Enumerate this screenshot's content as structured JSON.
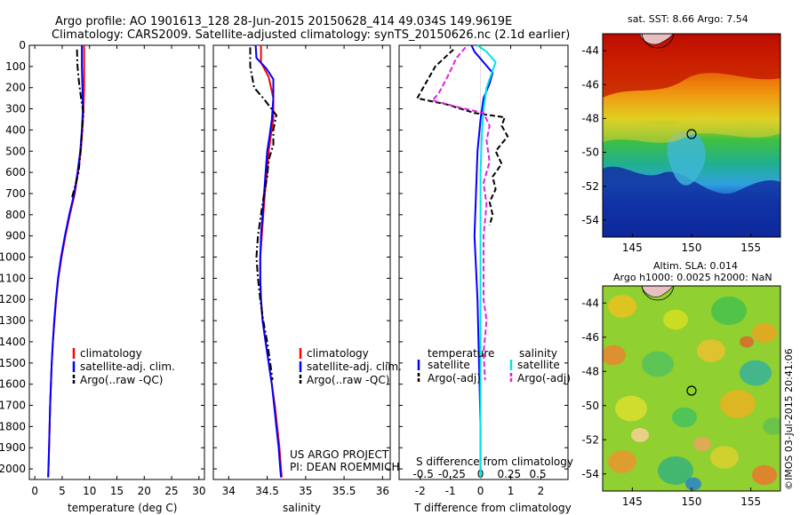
{
  "header": {
    "title_line1": "Argo profile: AO 1901613_128 28-Jun-2015 20150628_414 49.034S 149.9619E",
    "title_line2": "Climatology: CARS2009. Satellite-adjusted climatology: synTS_20150626.nc (2.1d earlier)"
  },
  "colors": {
    "climatology": "#ff0000",
    "satellite": "#0000ff",
    "argo": "#000000",
    "satellite_salinity": "#00e5e5",
    "argo_salinity_diff": "#e020e0"
  },
  "chart_data": [
    {
      "type": "line",
      "name": "temperature-profile",
      "xlabel": "temperature (deg C)",
      "xlim": [
        -1,
        31
      ],
      "ylim": [
        2050,
        0
      ],
      "x_ticks": [
        0,
        5,
        10,
        15,
        20,
        25,
        30
      ],
      "y_ticks": [
        0,
        100,
        200,
        300,
        400,
        500,
        600,
        700,
        800,
        900,
        1000,
        1100,
        1200,
        1300,
        1400,
        1500,
        1600,
        1700,
        1800,
        1900,
        2000
      ],
      "legend": [
        "climatology",
        "satellite-adj. clim.",
        "Argo(..raw -QC)"
      ],
      "series": [
        {
          "name": "climatology",
          "style": "solid",
          "color": "#ff0000",
          "points": [
            [
              9.0,
              0
            ],
            [
              9.0,
              100
            ],
            [
              9.0,
              200
            ],
            [
              8.9,
              300
            ],
            [
              8.7,
              400
            ],
            [
              8.4,
              500
            ],
            [
              7.9,
              600
            ],
            [
              7.3,
              700
            ],
            [
              6.4,
              800
            ],
            [
              5.6,
              900
            ],
            [
              4.9,
              1000
            ],
            [
              4.3,
              1100
            ],
            [
              3.9,
              1200
            ],
            [
              3.6,
              1300
            ],
            [
              3.3,
              1400
            ],
            [
              3.1,
              1500
            ],
            [
              2.95,
              1600
            ],
            [
              2.8,
              1700
            ],
            [
              2.7,
              1800
            ],
            [
              2.6,
              1900
            ],
            [
              2.5,
              2000
            ],
            [
              2.45,
              2040
            ]
          ]
        },
        {
          "name": "satellite-adj. clim.",
          "style": "solid",
          "color": "#0000ff",
          "points": [
            [
              8.6,
              0
            ],
            [
              8.6,
              100
            ],
            [
              8.7,
              200
            ],
            [
              8.8,
              300
            ],
            [
              8.6,
              400
            ],
            [
              8.3,
              500
            ],
            [
              7.8,
              600
            ],
            [
              7.2,
              700
            ],
            [
              6.3,
              800
            ],
            [
              5.5,
              900
            ],
            [
              4.8,
              1000
            ],
            [
              4.25,
              1100
            ],
            [
              3.85,
              1200
            ],
            [
              3.55,
              1300
            ],
            [
              3.3,
              1400
            ],
            [
              3.1,
              1500
            ],
            [
              2.95,
              1600
            ],
            [
              2.8,
              1700
            ],
            [
              2.7,
              1800
            ],
            [
              2.6,
              1900
            ],
            [
              2.5,
              2000
            ],
            [
              2.45,
              2040
            ]
          ]
        },
        {
          "name": "Argo(..raw -QC)",
          "style": "dashdot",
          "color": "#000000",
          "points": [
            [
              7.7,
              20
            ],
            [
              7.8,
              100
            ],
            [
              8.1,
              180
            ],
            [
              8.5,
              260
            ],
            [
              8.9,
              320
            ],
            [
              8.7,
              380
            ],
            [
              8.5,
              450
            ],
            [
              8.3,
              520
            ],
            [
              8.0,
              600
            ],
            [
              7.2,
              680
            ],
            [
              6.8,
              720
            ]
          ]
        }
      ]
    },
    {
      "type": "line",
      "name": "salinity-profile",
      "xlabel": "salinity",
      "xlim": [
        33.8,
        36.1
      ],
      "ylim": [
        2050,
        0
      ],
      "x_ticks": [
        34,
        34.5,
        35,
        35.5,
        36
      ],
      "legend": [
        "climatology",
        "satellite-adj. clim.",
        "Argo(..raw -QC)"
      ],
      "annotation": [
        "US ARGO PROJECT",
        "PI: DEAN ROEMMICH"
      ],
      "series": [
        {
          "name": "climatology",
          "style": "solid",
          "color": "#ff0000",
          "points": [
            [
              34.42,
              0
            ],
            [
              34.42,
              80
            ],
            [
              34.52,
              150
            ],
            [
              34.58,
              250
            ],
            [
              34.58,
              350
            ],
            [
              34.55,
              420
            ],
            [
              34.52,
              500
            ],
            [
              34.5,
              600
            ],
            [
              34.47,
              700
            ],
            [
              34.45,
              800
            ],
            [
              34.43,
              900
            ],
            [
              34.41,
              1000
            ],
            [
              34.41,
              1100
            ],
            [
              34.42,
              1200
            ],
            [
              34.44,
              1300
            ],
            [
              34.48,
              1400
            ],
            [
              34.52,
              1500
            ],
            [
              34.56,
              1600
            ],
            [
              34.6,
              1700
            ],
            [
              34.63,
              1800
            ],
            [
              34.66,
              1900
            ],
            [
              34.68,
              2000
            ],
            [
              34.69,
              2040
            ]
          ]
        },
        {
          "name": "satellite-adj. clim.",
          "style": "solid",
          "color": "#0000ff",
          "points": [
            [
              34.35,
              0
            ],
            [
              34.36,
              60
            ],
            [
              34.49,
              110
            ],
            [
              34.58,
              160
            ],
            [
              34.58,
              250
            ],
            [
              34.56,
              350
            ],
            [
              34.53,
              430
            ],
            [
              34.5,
              500
            ],
            [
              34.48,
              600
            ],
            [
              34.46,
              700
            ],
            [
              34.44,
              800
            ],
            [
              34.42,
              900
            ],
            [
              34.41,
              1000
            ],
            [
              34.41,
              1100
            ],
            [
              34.42,
              1200
            ],
            [
              34.44,
              1300
            ],
            [
              34.48,
              1400
            ],
            [
              34.52,
              1500
            ],
            [
              34.56,
              1600
            ],
            [
              34.59,
              1700
            ],
            [
              34.62,
              1800
            ],
            [
              34.65,
              1900
            ],
            [
              34.67,
              2000
            ],
            [
              34.68,
              2040
            ]
          ]
        },
        {
          "name": "Argo(..raw -QC)",
          "style": "dashdot",
          "color": "#000000",
          "points": [
            [
              34.28,
              10
            ],
            [
              34.28,
              100
            ],
            [
              34.33,
              200
            ],
            [
              34.45,
              250
            ],
            [
              34.62,
              330
            ],
            [
              34.58,
              400
            ],
            [
              34.58,
              470
            ],
            [
              34.52,
              540
            ],
            [
              34.5,
              620
            ],
            [
              34.46,
              700
            ],
            [
              34.42,
              800
            ],
            [
              34.38,
              900
            ],
            [
              34.36,
              1000
            ],
            [
              34.38,
              1100
            ],
            [
              34.41,
              1200
            ],
            [
              34.45,
              1300
            ],
            [
              34.5,
              1400
            ],
            [
              34.54,
              1500
            ],
            [
              34.57,
              1580
            ]
          ]
        }
      ]
    },
    {
      "type": "line",
      "name": "difference-profile",
      "xlabel": "T difference from climatology",
      "xlabel_top": "S difference from climatology",
      "xlim": [
        -2.7,
        2.9
      ],
      "ylim": [
        2050,
        0
      ],
      "x_ticks": [
        -2,
        -1,
        0,
        1,
        2
      ],
      "x_ticks_top_labels": [
        "-0.5",
        "-0.25",
        "0",
        "0.25",
        "0.5"
      ],
      "x_ticks_top_values": [
        -1.9,
        -0.95,
        0,
        0.95,
        1.9
      ],
      "legend_headers": [
        "temperature",
        "salinity"
      ],
      "legend": [
        "satellite",
        "Argo(-adj)",
        "satellite",
        "Argo(-adj)"
      ],
      "series": [
        {
          "name": "temperature satellite",
          "style": "solid",
          "color": "#0000ff",
          "points": [
            [
              -0.3,
              0
            ],
            [
              -0.2,
              30
            ],
            [
              0.1,
              80
            ],
            [
              0.4,
              130
            ],
            [
              0.3,
              180
            ],
            [
              0.1,
              250
            ],
            [
              0.0,
              350
            ],
            [
              -0.1,
              500
            ],
            [
              -0.15,
              700
            ],
            [
              -0.2,
              900
            ],
            [
              -0.1,
              1200
            ],
            [
              -0.05,
              1500
            ],
            [
              0.0,
              1800
            ],
            [
              0.0,
              2040
            ]
          ]
        },
        {
          "name": "temperature Argo(-adj)",
          "style": "dashed",
          "color": "#000000",
          "points": [
            [
              -0.9,
              20
            ],
            [
              -1.2,
              60
            ],
            [
              -1.5,
              100
            ],
            [
              -1.9,
              200
            ],
            [
              -2.1,
              250
            ],
            [
              -1.1,
              280
            ],
            [
              -0.2,
              320
            ],
            [
              0.8,
              340
            ],
            [
              0.7,
              380
            ],
            [
              0.9,
              430
            ],
            [
              0.5,
              500
            ],
            [
              0.7,
              560
            ],
            [
              0.4,
              620
            ],
            [
              0.5,
              680
            ],
            [
              0.3,
              740
            ],
            [
              0.4,
              800
            ],
            [
              0.3,
              850
            ]
          ]
        },
        {
          "name": "salinity satellite",
          "style": "solid",
          "color": "#00e5e5",
          "points": [
            [
              -0.1,
              0
            ],
            [
              0.2,
              30
            ],
            [
              0.5,
              80
            ],
            [
              0.4,
              120
            ],
            [
              0.2,
              200
            ],
            [
              0.1,
              300
            ],
            [
              0.05,
              400
            ],
            [
              0.0,
              600
            ],
            [
              0.0,
              800
            ],
            [
              0.0,
              1100
            ],
            [
              0.0,
              1400
            ],
            [
              0.0,
              1700
            ],
            [
              0.0,
              2040
            ]
          ]
        },
        {
          "name": "salinity Argo(-adj)",
          "style": "dashed",
          "color": "#e020e0",
          "points": [
            [
              -0.5,
              10
            ],
            [
              -0.8,
              60
            ],
            [
              -1.1,
              150
            ],
            [
              -1.4,
              230
            ],
            [
              -1.6,
              260
            ],
            [
              -0.8,
              290
            ],
            [
              0.1,
              320
            ],
            [
              0.3,
              380
            ],
            [
              0.2,
              450
            ],
            [
              0.3,
              550
            ],
            [
              0.1,
              650
            ],
            [
              0.2,
              750
            ],
            [
              0.1,
              900
            ],
            [
              0.1,
              1050
            ],
            [
              0.1,
              1200
            ],
            [
              0.2,
              1300
            ],
            [
              0.1,
              1450
            ],
            [
              0.15,
              1580
            ]
          ]
        }
      ]
    },
    {
      "type": "heatmap",
      "name": "sst-map",
      "title": "sat. SST: 8.66  Argo: 7.54",
      "xlim": [
        142.5,
        157.5
      ],
      "ylim": [
        -55,
        -43
      ],
      "x_ticks": [
        145,
        150,
        155
      ],
      "y_ticks": [
        -44,
        -46,
        -48,
        -50,
        -52,
        -54
      ],
      "marker": [
        150,
        -49
      ]
    },
    {
      "type": "heatmap",
      "name": "sla-map",
      "title_line1": "Altim. SLA: 0.014",
      "title_line2": "Argo h1000: 0.0025 h2000: NaN",
      "xlim": [
        142.5,
        157.5
      ],
      "ylim": [
        -55,
        -43
      ],
      "x_ticks": [
        145,
        150,
        155
      ],
      "y_ticks": [
        -44,
        -46,
        -48,
        -50,
        -52,
        -54
      ],
      "marker": [
        150,
        -49
      ]
    }
  ],
  "credit": "©IMOS 03-Jul-2015 20:41:06"
}
